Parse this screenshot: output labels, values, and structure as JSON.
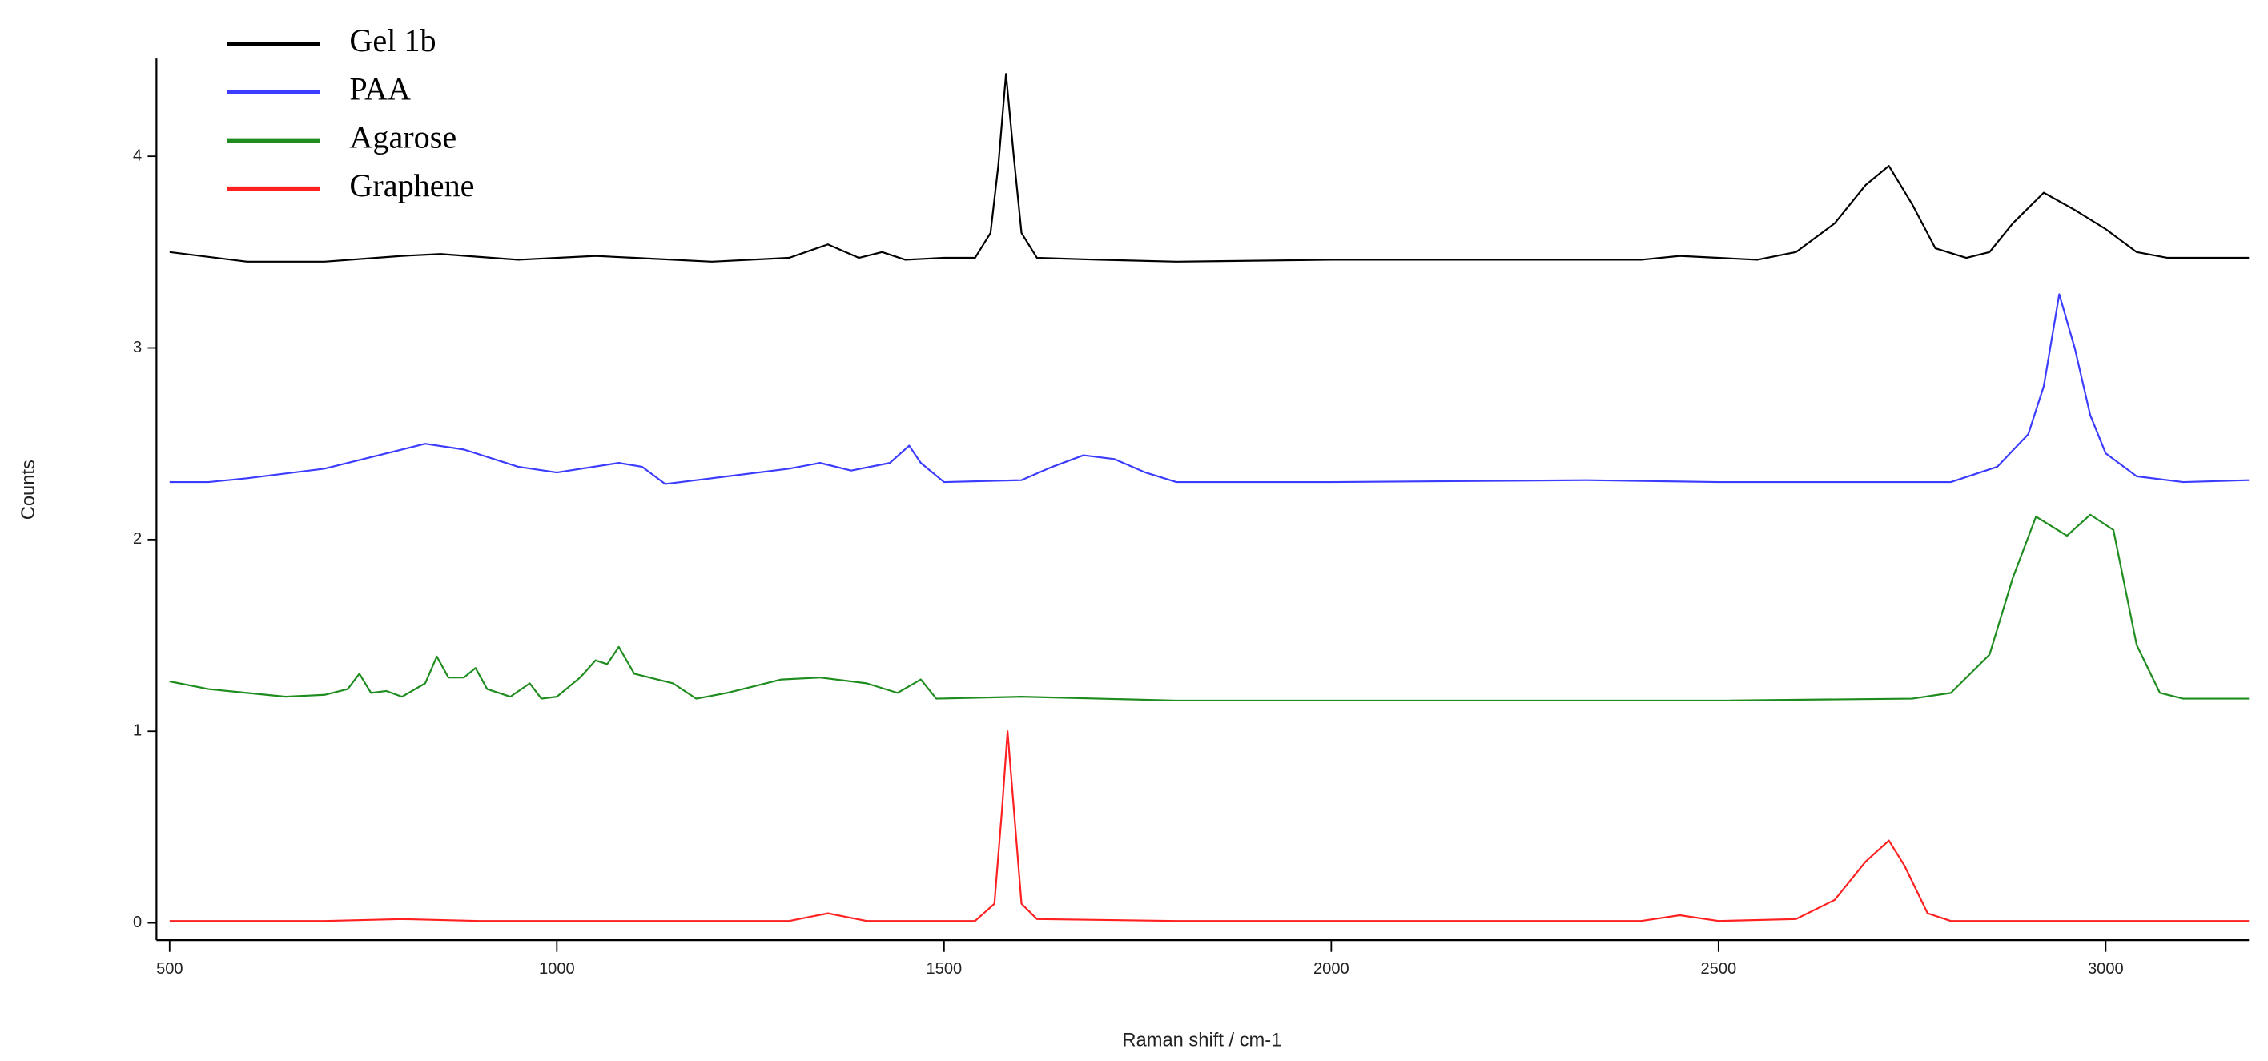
{
  "chart_data": {
    "type": "line",
    "xlabel": "Raman shift / cm-1",
    "ylabel": "Counts",
    "xlim": [
      483,
      3185
    ],
    "ylim": [
      -0.09,
      4.51
    ],
    "xticks": [
      500,
      1000,
      1500,
      2000,
      2500,
      3000
    ],
    "yticks": [
      0,
      1,
      2,
      3,
      4
    ],
    "legend": "upper left",
    "series": [
      {
        "name": "Gel 1b",
        "color": "#000000",
        "x": [
          500,
          600,
          700,
          800,
          850,
          950,
          1050,
          1100,
          1200,
          1300,
          1350,
          1390,
          1420,
          1450,
          1500,
          1540,
          1560,
          1570,
          1580,
          1590,
          1600,
          1620,
          1700,
          1800,
          2000,
          2200,
          2400,
          2450,
          2550,
          2600,
          2650,
          2690,
          2720,
          2750,
          2780,
          2820,
          2850,
          2880,
          2920,
          2960,
          3000,
          3040,
          3080,
          3185
        ],
        "values": [
          3.5,
          3.45,
          3.45,
          3.48,
          3.49,
          3.46,
          3.48,
          3.47,
          3.45,
          3.47,
          3.54,
          3.47,
          3.5,
          3.46,
          3.47,
          3.47,
          3.6,
          3.95,
          4.43,
          4.0,
          3.6,
          3.47,
          3.46,
          3.45,
          3.46,
          3.46,
          3.46,
          3.48,
          3.46,
          3.5,
          3.65,
          3.85,
          3.95,
          3.75,
          3.52,
          3.47,
          3.5,
          3.65,
          3.81,
          3.72,
          3.62,
          3.5,
          3.47,
          3.47
        ]
      },
      {
        "name": "PAA",
        "color": "#3c3cff",
        "x": [
          500,
          550,
          600,
          700,
          750,
          830,
          880,
          950,
          1000,
          1080,
          1110,
          1140,
          1200,
          1300,
          1340,
          1380,
          1430,
          1455,
          1470,
          1500,
          1600,
          1640,
          1680,
          1720,
          1760,
          1800,
          2000,
          2330,
          2500,
          2800,
          2860,
          2900,
          2920,
          2940,
          2960,
          2980,
          3000,
          3040,
          3100,
          3185
        ],
        "values": [
          2.3,
          2.3,
          2.32,
          2.37,
          2.42,
          2.5,
          2.47,
          2.38,
          2.35,
          2.4,
          2.38,
          2.29,
          2.32,
          2.37,
          2.4,
          2.36,
          2.4,
          2.49,
          2.4,
          2.3,
          2.31,
          2.38,
          2.44,
          2.42,
          2.35,
          2.3,
          2.3,
          2.31,
          2.3,
          2.3,
          2.38,
          2.55,
          2.8,
          3.28,
          3.0,
          2.65,
          2.45,
          2.33,
          2.3,
          2.31
        ]
      },
      {
        "name": "Agarose",
        "color": "#1e8c1e",
        "x": [
          500,
          550,
          600,
          650,
          700,
          730,
          745,
          760,
          780,
          800,
          830,
          845,
          860,
          880,
          895,
          910,
          940,
          965,
          980,
          1000,
          1030,
          1050,
          1065,
          1080,
          1100,
          1150,
          1180,
          1220,
          1250,
          1290,
          1340,
          1400,
          1440,
          1470,
          1490,
          1600,
          1800,
          2000,
          2500,
          2750,
          2800,
          2850,
          2880,
          2910,
          2950,
          2980,
          3010,
          3040,
          3070,
          3100,
          3185
        ],
        "values": [
          1.26,
          1.22,
          1.2,
          1.18,
          1.19,
          1.22,
          1.3,
          1.2,
          1.21,
          1.18,
          1.25,
          1.39,
          1.28,
          1.28,
          1.33,
          1.22,
          1.18,
          1.25,
          1.17,
          1.18,
          1.28,
          1.37,
          1.35,
          1.44,
          1.3,
          1.25,
          1.17,
          1.2,
          1.23,
          1.27,
          1.28,
          1.25,
          1.2,
          1.27,
          1.17,
          1.18,
          1.16,
          1.16,
          1.16,
          1.17,
          1.2,
          1.4,
          1.8,
          2.12,
          2.02,
          2.13,
          2.05,
          1.45,
          1.2,
          1.17,
          1.17
        ]
      },
      {
        "name": "Graphene",
        "color": "#ff2020",
        "x": [
          500,
          700,
          800,
          900,
          1300,
          1350,
          1400,
          1540,
          1565,
          1575,
          1582,
          1590,
          1600,
          1620,
          1800,
          2400,
          2450,
          2500,
          2600,
          2650,
          2690,
          2720,
          2740,
          2770,
          2800,
          3185
        ],
        "values": [
          0.01,
          0.01,
          0.02,
          0.01,
          0.01,
          0.05,
          0.01,
          0.01,
          0.1,
          0.6,
          1.0,
          0.6,
          0.1,
          0.02,
          0.01,
          0.01,
          0.04,
          0.01,
          0.02,
          0.12,
          0.32,
          0.43,
          0.3,
          0.05,
          0.01,
          0.01
        ]
      }
    ]
  }
}
